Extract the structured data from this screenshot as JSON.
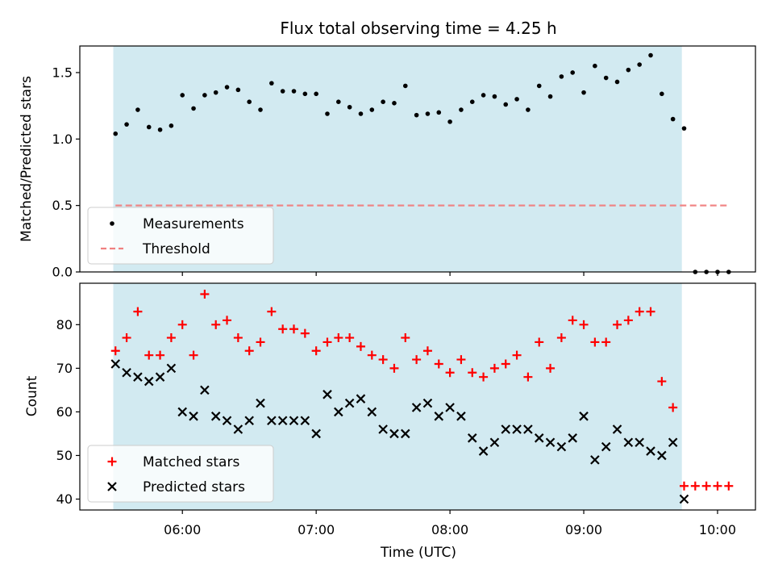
{
  "chart_data": [
    {
      "type": "scatter",
      "title": "Flux total observing time = 4.25 h",
      "xlabel": "",
      "ylabel": "Matched/Predicted stars",
      "xlim": [
        "05:14",
        "10:17"
      ],
      "ylim": [
        0,
        1.7
      ],
      "grid": false,
      "legend_placement": "lower-left",
      "shaded_region": {
        "x_start": "05:29",
        "x_end": "09:44",
        "color": "#add8e6"
      },
      "y_ticks": [
        0.0,
        0.5,
        1.0,
        1.5
      ],
      "y_tick_labels": [
        "0.0",
        "0.5",
        "1.0",
        "1.5"
      ],
      "series": [
        {
          "name": "Measurements",
          "marker": "dot",
          "color": "#000000",
          "x": [
            "05:30",
            "05:35",
            "05:40",
            "05:45",
            "05:50",
            "05:55",
            "06:00",
            "06:05",
            "06:10",
            "06:15",
            "06:20",
            "06:25",
            "06:30",
            "06:35",
            "06:40",
            "06:45",
            "06:50",
            "06:55",
            "07:00",
            "07:05",
            "07:10",
            "07:15",
            "07:20",
            "07:25",
            "07:30",
            "07:35",
            "07:40",
            "07:45",
            "07:50",
            "07:55",
            "08:00",
            "08:05",
            "08:10",
            "08:15",
            "08:20",
            "08:25",
            "08:30",
            "08:35",
            "08:40",
            "08:45",
            "08:50",
            "08:55",
            "09:00",
            "09:05",
            "09:10",
            "09:15",
            "09:20",
            "09:25",
            "09:30",
            "09:35",
            "09:40",
            "09:45",
            "09:50",
            "09:55",
            "10:00",
            "10:05"
          ],
          "y": [
            1.04,
            1.11,
            1.22,
            1.09,
            1.07,
            1.1,
            1.33,
            1.23,
            1.33,
            1.35,
            1.39,
            1.37,
            1.28,
            1.22,
            1.42,
            1.36,
            1.36,
            1.34,
            1.34,
            1.19,
            1.28,
            1.24,
            1.19,
            1.22,
            1.28,
            1.27,
            1.4,
            1.18,
            1.19,
            1.2,
            1.13,
            1.22,
            1.28,
            1.33,
            1.32,
            1.26,
            1.3,
            1.22,
            1.4,
            1.32,
            1.47,
            1.5,
            1.35,
            1.55,
            1.46,
            1.43,
            1.52,
            1.56,
            1.63,
            1.34,
            1.15,
            1.08,
            0.0,
            0.0,
            0.0,
            0.0
          ]
        },
        {
          "name": "Threshold",
          "marker": "dashed-line",
          "color": "#f08080",
          "x": [
            "05:30",
            "10:05"
          ],
          "y": [
            0.5,
            0.5
          ]
        }
      ]
    },
    {
      "type": "scatter",
      "title": "",
      "xlabel": "Time (UTC)",
      "ylabel": "Count",
      "xlim": [
        "05:14",
        "10:17"
      ],
      "ylim": [
        37.5,
        89.5
      ],
      "grid": false,
      "legend_placement": "lower-left",
      "shaded_region": {
        "x_start": "05:29",
        "x_end": "09:44",
        "color": "#add8e6"
      },
      "x_ticks": [
        "06:00",
        "07:00",
        "08:00",
        "09:00",
        "10:00"
      ],
      "y_ticks": [
        40,
        50,
        60,
        70,
        80
      ],
      "y_tick_labels": [
        "40",
        "50",
        "60",
        "70",
        "80"
      ],
      "series": [
        {
          "name": "Matched stars",
          "marker": "plus",
          "color": "#ff0000",
          "x": [
            "05:30",
            "05:35",
            "05:40",
            "05:45",
            "05:50",
            "05:55",
            "06:00",
            "06:05",
            "06:10",
            "06:15",
            "06:20",
            "06:25",
            "06:30",
            "06:35",
            "06:40",
            "06:45",
            "06:50",
            "06:55",
            "07:00",
            "07:05",
            "07:10",
            "07:15",
            "07:20",
            "07:25",
            "07:30",
            "07:35",
            "07:40",
            "07:45",
            "07:50",
            "07:55",
            "08:00",
            "08:05",
            "08:10",
            "08:15",
            "08:20",
            "08:25",
            "08:30",
            "08:35",
            "08:40",
            "08:45",
            "08:50",
            "08:55",
            "09:00",
            "09:05",
            "09:10",
            "09:15",
            "09:20",
            "09:25",
            "09:30",
            "09:35",
            "09:40",
            "09:45",
            "09:50",
            "09:55",
            "10:00",
            "10:05"
          ],
          "y": [
            74,
            77,
            83,
            73,
            73,
            77,
            80,
            73,
            87,
            80,
            81,
            77,
            74,
            76,
            83,
            79,
            79,
            78,
            74,
            76,
            77,
            77,
            75,
            73,
            72,
            70,
            77,
            72,
            74,
            71,
            69,
            72,
            69,
            68,
            70,
            71,
            73,
            68,
            76,
            70,
            77,
            81,
            80,
            76,
            76,
            80,
            81,
            83,
            83,
            67,
            61,
            43,
            43,
            43,
            43,
            43
          ]
        },
        {
          "name": "Predicted stars",
          "marker": "x",
          "color": "#000000",
          "x": [
            "05:30",
            "05:35",
            "05:40",
            "05:45",
            "05:50",
            "05:55",
            "06:00",
            "06:05",
            "06:10",
            "06:15",
            "06:20",
            "06:25",
            "06:30",
            "06:35",
            "06:40",
            "06:45",
            "06:50",
            "06:55",
            "07:00",
            "07:05",
            "07:10",
            "07:15",
            "07:20",
            "07:25",
            "07:30",
            "07:35",
            "07:40",
            "07:45",
            "07:50",
            "07:55",
            "08:00",
            "08:05",
            "08:10",
            "08:15",
            "08:20",
            "08:25",
            "08:30",
            "08:35",
            "08:40",
            "08:45",
            "08:50",
            "08:55",
            "09:00",
            "09:05",
            "09:10",
            "09:15",
            "09:20",
            "09:25",
            "09:30",
            "09:35",
            "09:40",
            "09:45"
          ],
          "y": [
            71,
            69,
            68,
            67,
            68,
            70,
            60,
            59,
            65,
            59,
            58,
            56,
            58,
            62,
            58,
            58,
            58,
            58,
            55,
            64,
            60,
            62,
            63,
            60,
            56,
            55,
            55,
            61,
            62,
            59,
            61,
            59,
            54,
            51,
            53,
            56,
            56,
            56,
            54,
            53,
            52,
            54,
            59,
            49,
            52,
            56,
            53,
            53,
            51,
            50,
            53,
            40
          ]
        }
      ]
    }
  ]
}
